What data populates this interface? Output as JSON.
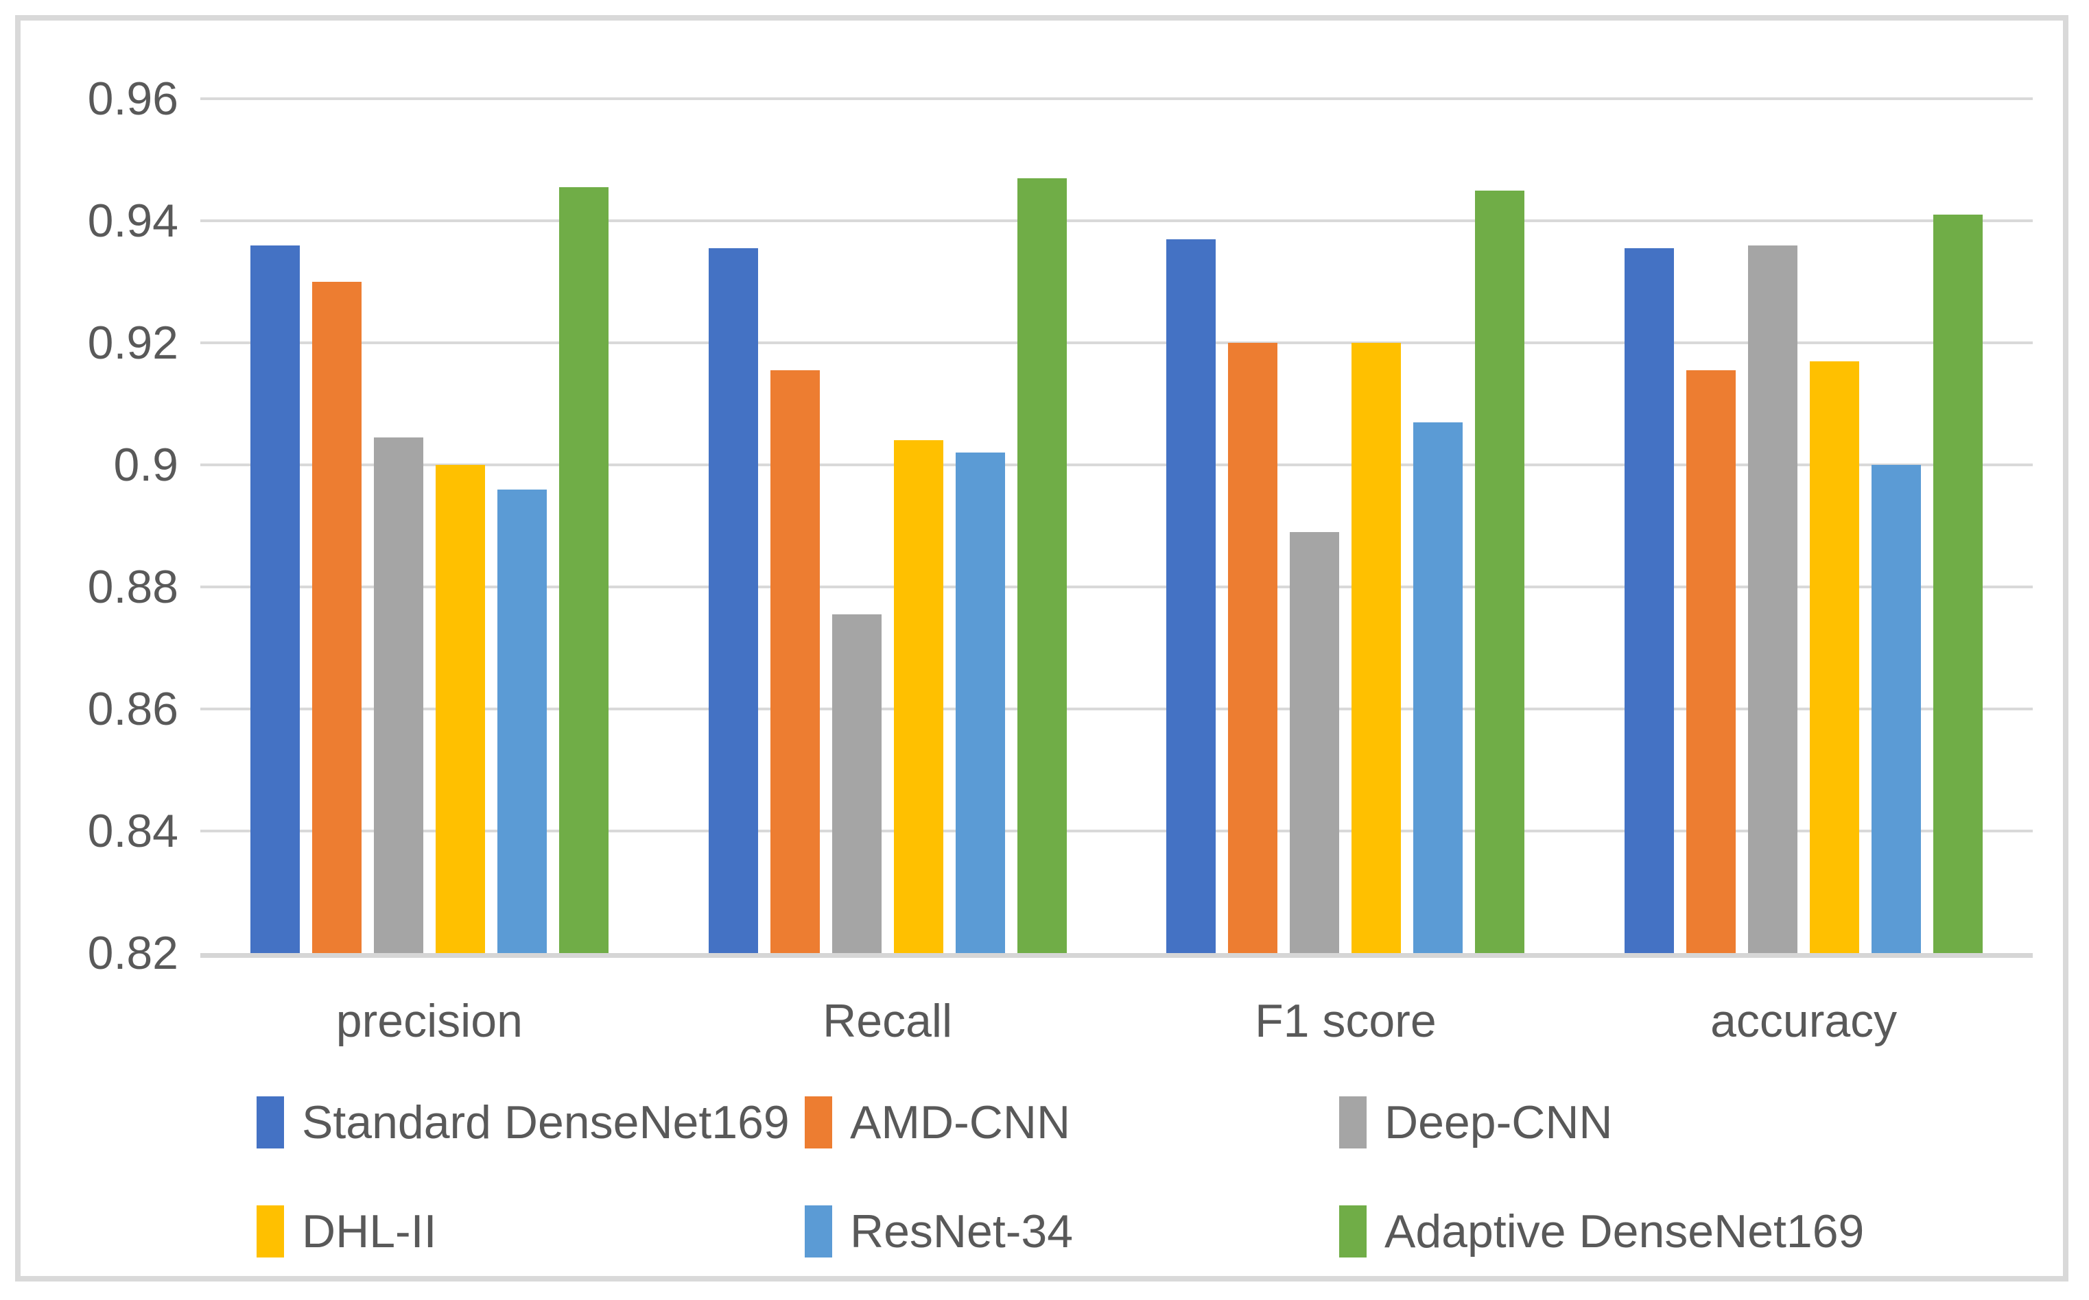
{
  "chart_data": {
    "type": "bar",
    "title": "",
    "categories": [
      "precision",
      "Recall",
      "F1 score",
      "accuracy"
    ],
    "series": [
      {
        "name": "Standard DenseNet169",
        "color": "#4472C4",
        "values": [
          0.936,
          0.9355,
          0.937,
          0.9355
        ]
      },
      {
        "name": "AMD-CNN",
        "color": "#ED7D31",
        "values": [
          0.93,
          0.9155,
          0.92,
          0.9155
        ]
      },
      {
        "name": "Deep-CNN",
        "color": "#A5A5A5",
        "values": [
          0.9045,
          0.8755,
          0.889,
          0.936
        ]
      },
      {
        "name": "DHL-II",
        "color": "#FFC000",
        "values": [
          0.9,
          0.904,
          0.92,
          0.917
        ]
      },
      {
        "name": "ResNet-34",
        "color": "#5B9BD5",
        "values": [
          0.896,
          0.902,
          0.907,
          0.9
        ]
      },
      {
        "name": "Adaptive DenseNet169",
        "color": "#70AD47",
        "values": [
          0.9455,
          0.947,
          0.945,
          0.941
        ]
      }
    ],
    "y_axis": {
      "min": 0.82,
      "max": 0.96,
      "step": 0.02,
      "tick_labels": [
        "0.96",
        "0.94",
        "0.92",
        "0.9",
        "0.88",
        "0.86",
        "0.84",
        "0.82"
      ]
    },
    "grid": true,
    "legend_position": "bottom",
    "colors": {
      "text": "#595959",
      "gridline": "#D9D9D9",
      "axis_line": "#D6D6D6",
      "chart_border": "#D9D9D9",
      "background": "#FFFFFF"
    }
  },
  "layout_note_values_visible_only": true
}
